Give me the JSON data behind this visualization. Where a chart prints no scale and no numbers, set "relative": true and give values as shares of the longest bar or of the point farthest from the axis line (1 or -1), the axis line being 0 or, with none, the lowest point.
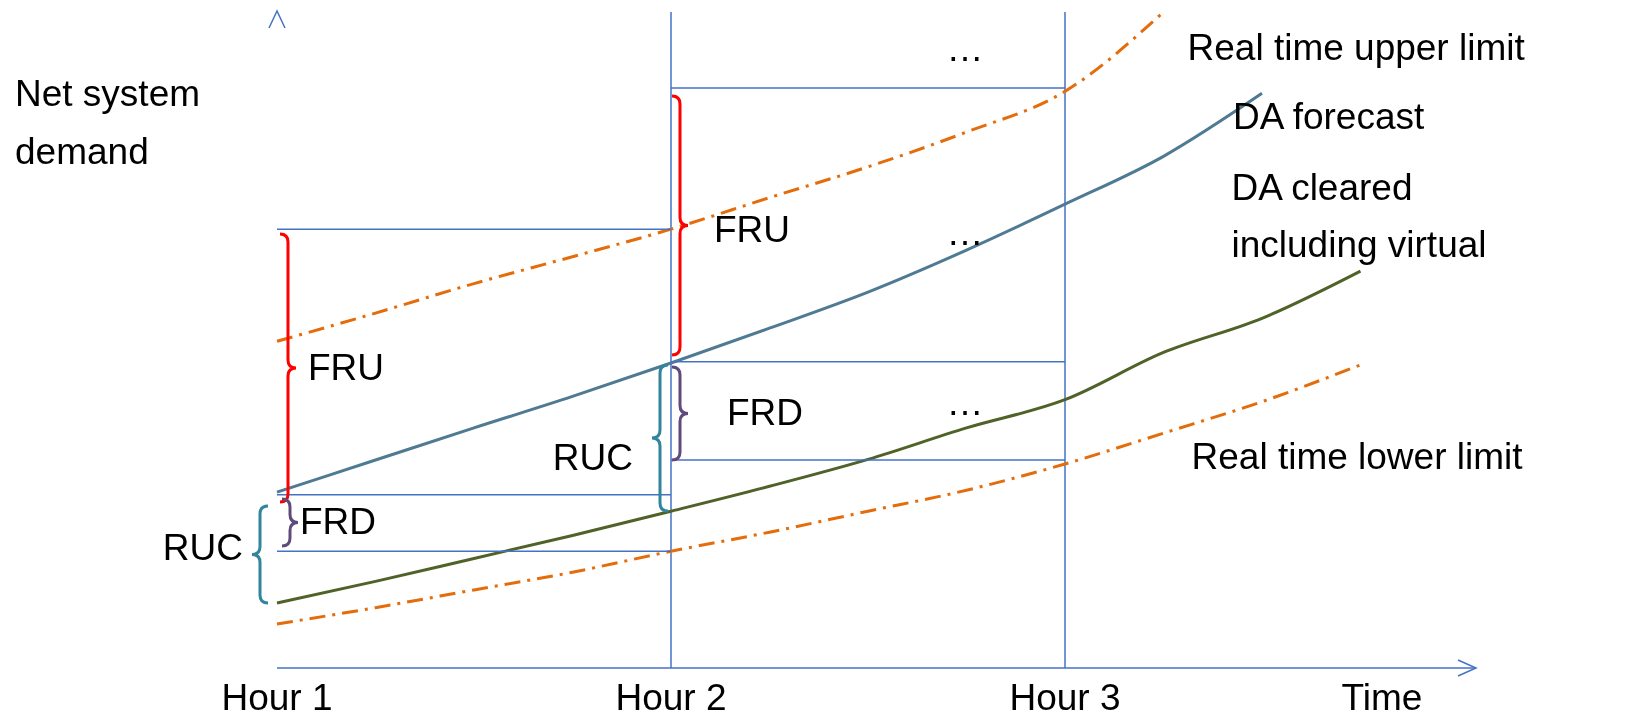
{
  "chart_data": {
    "type": "line",
    "relative": true,
    "ylabel": "Net system demand",
    "xlabel": "Time",
    "marker": "none",
    "categories": [
      "Hour 1",
      null,
      null,
      null,
      "Hour 2",
      null,
      null,
      null,
      "Hour 3",
      null,
      null,
      null,
      null
    ],
    "series": [
      {
        "name": "Real time upper limit",
        "color": "#e46c0a",
        "line_style": "dashed",
        "values": [
          0.498,
          0.541,
          0.586,
          0.627,
          0.669,
          0.717,
          0.764,
          0.817,
          0.879,
          1.0,
          null,
          null,
          null
        ]
      },
      {
        "name": "DA forecast",
        "color": "#4f7a93",
        "line_style": "solid",
        "values": [
          0.268,
          0.317,
          0.366,
          0.414,
          0.465,
          0.518,
          0.573,
          0.637,
          0.707,
          0.78,
          0.876,
          null,
          null
        ]
      },
      {
        "name": "DA cleared including virtual",
        "color": "#4f6228",
        "line_style": "solid",
        "values": [
          0.099,
          0.132,
          0.167,
          0.202,
          0.239,
          0.277,
          0.318,
          0.366,
          0.409,
          0.481,
          0.533,
          0.605,
          null
        ]
      },
      {
        "name": "Real time lower limit",
        "color": "#e46c0a",
        "line_style": "dashed",
        "values": [
          0.067,
          0.092,
          0.119,
          0.146,
          0.178,
          0.207,
          0.239,
          0.271,
          0.311,
          0.358,
          0.406,
          0.462,
          null
        ]
      },
      {
        "color": "#4472c4",
        "line_style": "solid",
        "values": [
          0.669,
          0.669,
          0.669,
          0.669,
          0.669,
          null,
          null,
          null,
          null,
          null,
          null,
          null,
          null
        ]
      },
      {
        "color": "#4472c4",
        "line_style": "solid",
        "values": [
          null,
          null,
          null,
          null,
          0.884,
          0.884,
          0.884,
          0.884,
          0.884,
          null,
          null,
          null,
          null
        ]
      },
      {
        "color": "#4472c4",
        "line_style": "solid",
        "values": [
          null,
          null,
          null,
          null,
          0.467,
          0.467,
          0.467,
          0.467,
          0.467,
          null,
          null,
          null,
          null
        ]
      },
      {
        "color": "#4472c4",
        "line_style": "solid",
        "values": [
          null,
          null,
          null,
          null,
          0.317,
          0.317,
          0.317,
          0.317,
          0.317,
          null,
          null,
          null,
          null
        ]
      },
      {
        "color": "#4472c4",
        "line_style": "solid",
        "values": [
          0.264,
          0.264,
          0.264,
          0.264,
          0.264,
          null,
          null,
          null,
          null,
          null,
          null,
          null,
          null
        ]
      },
      {
        "color": "#4472c4",
        "line_style": "solid",
        "values": [
          0.178,
          0.178,
          0.178,
          0.178,
          0.178,
          null,
          null,
          null,
          null,
          null,
          null,
          null,
          null
        ]
      }
    ],
    "ref_lines": [
      {
        "axis": "x",
        "value": "Hour 2",
        "color": "#4472c4"
      },
      {
        "axis": "x",
        "value": "Hour 3",
        "color": "#4472c4"
      }
    ],
    "annotations": [
      "FRU",
      "FRD",
      "RUC",
      "FRU",
      "RUC",
      "FRD",
      "…",
      "…",
      "…"
    ]
  }
}
